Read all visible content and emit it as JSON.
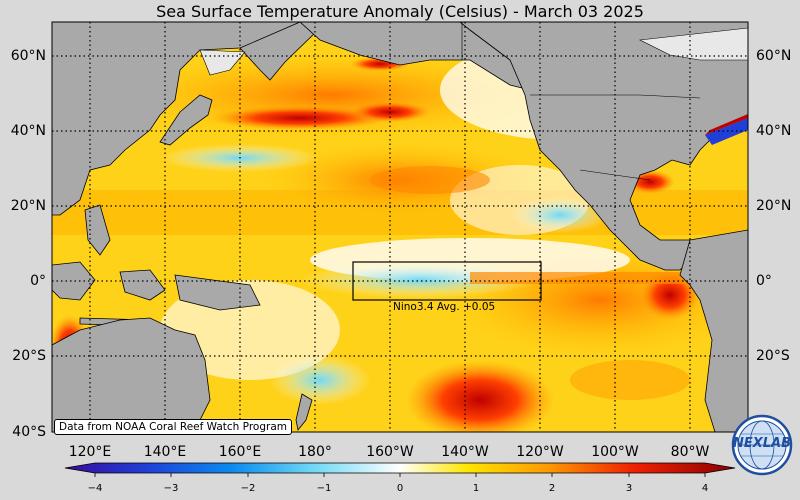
{
  "title": "Sea Surface Temperature Anomaly (Celsius) - March 03 2025",
  "latitude_labels": [
    "60°N",
    "40°N",
    "20°N",
    "0°",
    "20°S",
    "40°S"
  ],
  "longitude_labels": [
    "120°E",
    "140°E",
    "160°E",
    "180°",
    "160°W",
    "140°W",
    "120°W",
    "100°W",
    "80°W"
  ],
  "credit": "Data from NOAA Coral Reef Watch Program",
  "nino_box": {
    "label": "Nino3.4 Avg. +0.05",
    "lon_range": [
      -170,
      -120
    ],
    "lat_range": [
      -5,
      5
    ]
  },
  "colorbar": {
    "ticks": [
      "−4",
      "−3",
      "−2",
      "−1",
      "0",
      "1",
      "2",
      "3",
      "4"
    ],
    "min": -4,
    "max": 4
  },
  "logo_text": "NEXLAB",
  "colors": {
    "land": "#a9a9a9",
    "background": "#d9d9d9",
    "cold": "#3a0a9c",
    "neutral": "#ffffff",
    "warm": "#8b0000"
  }
}
